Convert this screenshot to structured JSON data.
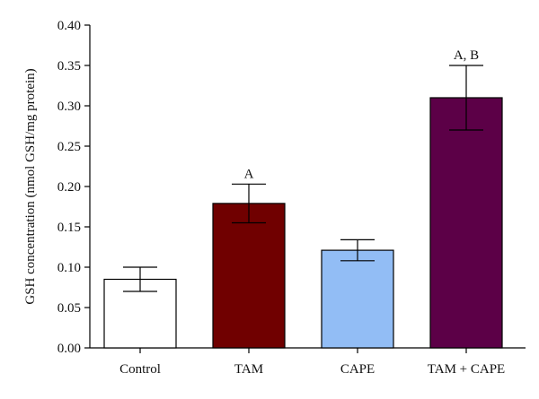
{
  "chart_data": {
    "type": "bar",
    "title": "",
    "xlabel": "",
    "ylabel": "GSH concentration (nmol GSH/mg protein)",
    "ylim": [
      0,
      0.4
    ],
    "yticks": [
      "0.00",
      "0.05",
      "0.10",
      "0.15",
      "0.20",
      "0.25",
      "0.30",
      "0.35",
      "0.40"
    ],
    "categories": [
      "Control",
      "TAM",
      "CAPE",
      "TAM + CAPE"
    ],
    "values": [
      0.085,
      0.179,
      0.121,
      0.31
    ],
    "errors": [
      0.015,
      0.024,
      0.013,
      0.04
    ],
    "annotations": [
      "",
      "A",
      "",
      "A, B"
    ],
    "colors": [
      "#ffffff",
      "#700000",
      "#92bdf5",
      "#5c0047"
    ],
    "grid": false,
    "legend": "none"
  }
}
